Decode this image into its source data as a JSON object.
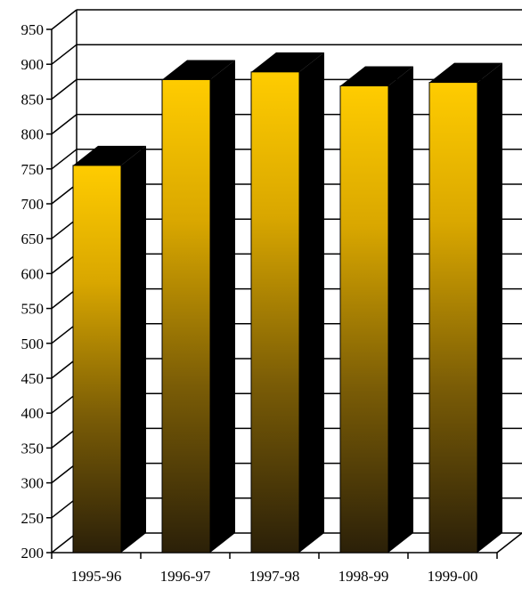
{
  "chart_data": {
    "type": "bar",
    "title": "",
    "xlabel": "",
    "ylabel": "",
    "categories": [
      "1995-96",
      "1996-97",
      "1997-98",
      "1998-99",
      "1999-00"
    ],
    "values": [
      755,
      878,
      889,
      869,
      874
    ],
    "ylim": [
      200,
      950
    ],
    "yticks": [
      200,
      250,
      300,
      350,
      400,
      450,
      500,
      550,
      600,
      650,
      700,
      750,
      800,
      850,
      900,
      950
    ],
    "grid": true,
    "legend": "none",
    "style": "3d-gradient",
    "colors": {
      "bar_top": "#ffcc00",
      "bar_bottom": "#2b2008",
      "bar_side": "#000000",
      "grid": "#000000",
      "background": "#ffffff"
    }
  }
}
